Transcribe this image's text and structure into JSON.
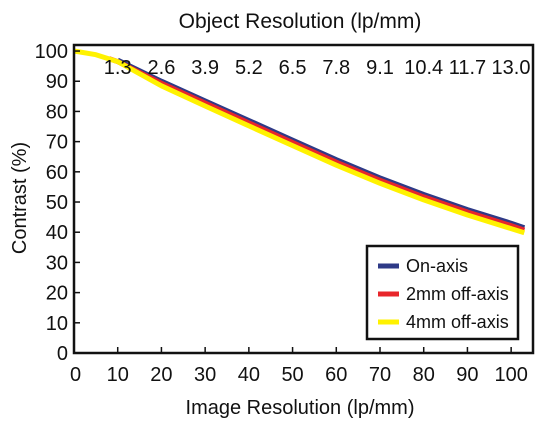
{
  "chart_data": {
    "type": "line",
    "title": "Object Resolution (lp/mm)",
    "xlabel": "Image Resolution (lp/mm)",
    "ylabel": "Contrast (%)",
    "xlim": [
      0,
      105
    ],
    "ylim": [
      0,
      102
    ],
    "x_ticks": [
      "0",
      "10",
      "20",
      "30",
      "40",
      "50",
      "60",
      "70",
      "80",
      "90",
      "100"
    ],
    "x_tick_values": [
      0,
      10,
      20,
      30,
      40,
      50,
      60,
      70,
      80,
      90,
      100
    ],
    "y_ticks": [
      "0",
      "10",
      "20",
      "30",
      "40",
      "50",
      "60",
      "70",
      "80",
      "90",
      "100"
    ],
    "y_tick_values": [
      0,
      10,
      20,
      30,
      40,
      50,
      60,
      70,
      80,
      90,
      100
    ],
    "secondary_x_ticks": [
      "1.3",
      "2.6",
      "3.9",
      "5.2",
      "6.5",
      "7.8",
      "9.1",
      "10.4",
      "11.7",
      "13.0"
    ],
    "secondary_x_tick_positions": [
      10,
      20,
      30,
      40,
      50,
      60,
      70,
      80,
      90,
      100
    ],
    "grid": false,
    "legend_position": "bottom-right",
    "series": [
      {
        "name": "On-axis",
        "color": "#2e3a87",
        "x": [
          10,
          20,
          30,
          40,
          50,
          60,
          70,
          80,
          90,
          100,
          103
        ],
        "y": [
          97,
          90,
          83.5,
          77,
          70.5,
          64,
          58,
          52.5,
          47.5,
          43,
          41.5
        ]
      },
      {
        "name": "2mm off-axis",
        "color": "#e8262b",
        "x": [
          8,
          10,
          20,
          30,
          40,
          50,
          60,
          70,
          80,
          90,
          100,
          103
        ],
        "y": [
          97.5,
          96.5,
          89.3,
          82.8,
          76.2,
          69.7,
          63.2,
          57.2,
          51.7,
          46.7,
          42.2,
          40.7
        ]
      },
      {
        "name": "4mm off-axis",
        "color": "#fff200",
        "x": [
          0,
          5,
          10,
          20,
          30,
          40,
          50,
          60,
          70,
          80,
          90,
          100,
          103
        ],
        "y": [
          100,
          98.8,
          96.5,
          88.5,
          81.8,
          75.2,
          68.7,
          62.2,
          56.2,
          50.7,
          45.7,
          41.2,
          39.8
        ]
      }
    ]
  }
}
